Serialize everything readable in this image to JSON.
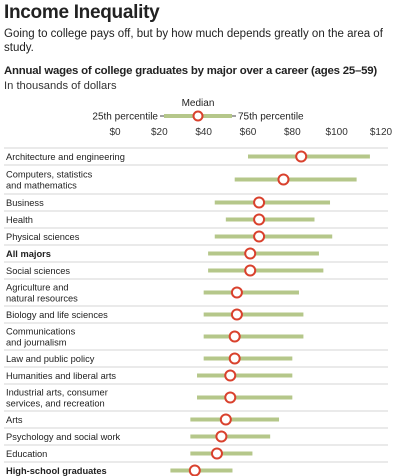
{
  "title": "Income Inequality",
  "subtitle": "Going to college pays off, but by how much depends greatly on the area of study.",
  "chart_data": {
    "type": "range-dot",
    "title": "Annual wages of college graduates by major over a career (ages 25–59)",
    "unit": "In thousands of dollars",
    "legend": {
      "low": "25th percentile",
      "mid": "Median",
      "high": "75th percentile"
    },
    "x_ticks": [
      "$0",
      "$20",
      "$40",
      "$60",
      "$80",
      "$100",
      "$120"
    ],
    "xlim": [
      0,
      120
    ],
    "colors": {
      "range": "#b5c78a",
      "median": "#d9412d",
      "rule": "#c8c8c8"
    },
    "series": [
      {
        "label": [
          "Architecture and engineering"
        ],
        "p25": 60,
        "median": 84,
        "p75": 115,
        "bold": false
      },
      {
        "label": [
          "Computers, statistics",
          "and mathematics"
        ],
        "p25": 54,
        "median": 76,
        "p75": 109,
        "bold": false
      },
      {
        "label": [
          "Business"
        ],
        "p25": 45,
        "median": 65,
        "p75": 97,
        "bold": false
      },
      {
        "label": [
          "Health"
        ],
        "p25": 50,
        "median": 65,
        "p75": 90,
        "bold": false
      },
      {
        "label": [
          "Physical sciences"
        ],
        "p25": 45,
        "median": 65,
        "p75": 98,
        "bold": false
      },
      {
        "label": [
          "All majors"
        ],
        "p25": 42,
        "median": 61,
        "p75": 92,
        "bold": true
      },
      {
        "label": [
          "Social sciences"
        ],
        "p25": 42,
        "median": 61,
        "p75": 94,
        "bold": false
      },
      {
        "label": [
          "Agriculture and",
          "natural resources"
        ],
        "p25": 40,
        "median": 55,
        "p75": 83,
        "bold": false
      },
      {
        "label": [
          "Biology and life sciences"
        ],
        "p25": 40,
        "median": 55,
        "p75": 85,
        "bold": false
      },
      {
        "label": [
          "Communications",
          "and journalism"
        ],
        "p25": 40,
        "median": 54,
        "p75": 85,
        "bold": false
      },
      {
        "label": [
          "Law and public policy"
        ],
        "p25": 40,
        "median": 54,
        "p75": 80,
        "bold": false
      },
      {
        "label": [
          "Humanities and liberal arts"
        ],
        "p25": 37,
        "median": 52,
        "p75": 80,
        "bold": false
      },
      {
        "label": [
          "Industrial arts, consumer",
          "services, and recreation"
        ],
        "p25": 37,
        "median": 52,
        "p75": 80,
        "bold": false
      },
      {
        "label": [
          "Arts"
        ],
        "p25": 34,
        "median": 50,
        "p75": 74,
        "bold": false
      },
      {
        "label": [
          "Psychology and social work"
        ],
        "p25": 34,
        "median": 48,
        "p75": 70,
        "bold": false
      },
      {
        "label": [
          "Education"
        ],
        "p25": 34,
        "median": 46,
        "p75": 62,
        "bold": false
      },
      {
        "label": [
          "High-school graduates"
        ],
        "p25": 25,
        "median": 36,
        "p75": 53,
        "bold": true
      }
    ]
  }
}
